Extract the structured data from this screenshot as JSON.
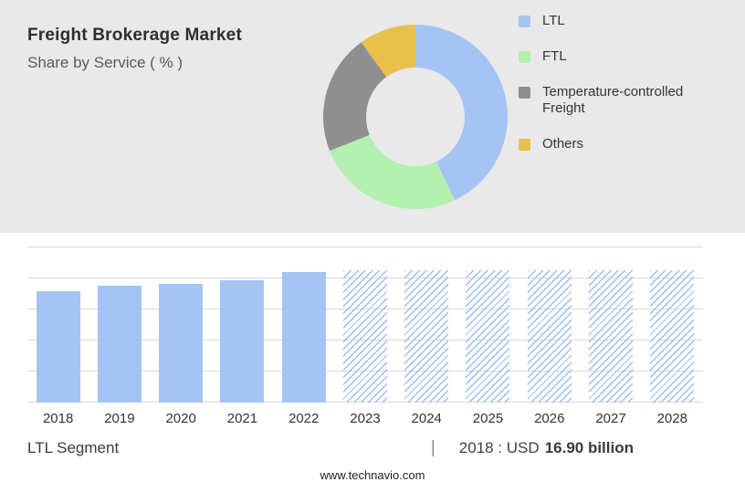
{
  "header": {
    "title": "Freight Brokerage Market",
    "subtitle": "Share by Service ( % )"
  },
  "colors": {
    "panel_bg": "#e9e9e9",
    "bar_blue": "#a5c4f4",
    "grid": "#d9d9d9"
  },
  "legend": {
    "items": [
      {
        "label": "LTL",
        "color": "#a5c4f4"
      },
      {
        "label": "FTL",
        "color": "#b4f0b0"
      },
      {
        "label": "Temperature-controlled Freight",
        "color": "#8f8f8f"
      },
      {
        "label": "Others",
        "color": "#e8c04b"
      }
    ]
  },
  "chart_data": [
    {
      "type": "pie",
      "donut": true,
      "title": "Share by Service ( % )",
      "labels": [
        "LTL",
        "FTL",
        "Temperature-controlled Freight",
        "Others"
      ],
      "values": [
        43,
        26,
        21,
        10
      ],
      "colors": [
        "#a5c4f4",
        "#b4f0b0",
        "#8f8f8f",
        "#e8c04b"
      ],
      "legend_position": "right",
      "value_note": "percent shares estimated from slice angles; no numeric labels shown"
    },
    {
      "type": "bar",
      "x": [
        "2018",
        "2019",
        "2020",
        "2021",
        "2022",
        "2023",
        "2024",
        "2025",
        "2026",
        "2027",
        "2028"
      ],
      "values": [
        100,
        105,
        107,
        110,
        117,
        119,
        119,
        119,
        119,
        119,
        119
      ],
      "value_note": "relative index (2018 = 100) estimated from bar heights; no y-axis labels shown",
      "forecast_from": "2023",
      "xlabel": "",
      "ylabel": "",
      "grid": true,
      "bar_color": "#a5c4f4",
      "forecast_style": "diagonal-hatch"
    }
  ],
  "footer": {
    "segment_label": "LTL Segment",
    "separator": "|",
    "value_prefix": "2018 : USD",
    "value_bold": "16.90 billion",
    "website": "www.technavio.com"
  }
}
